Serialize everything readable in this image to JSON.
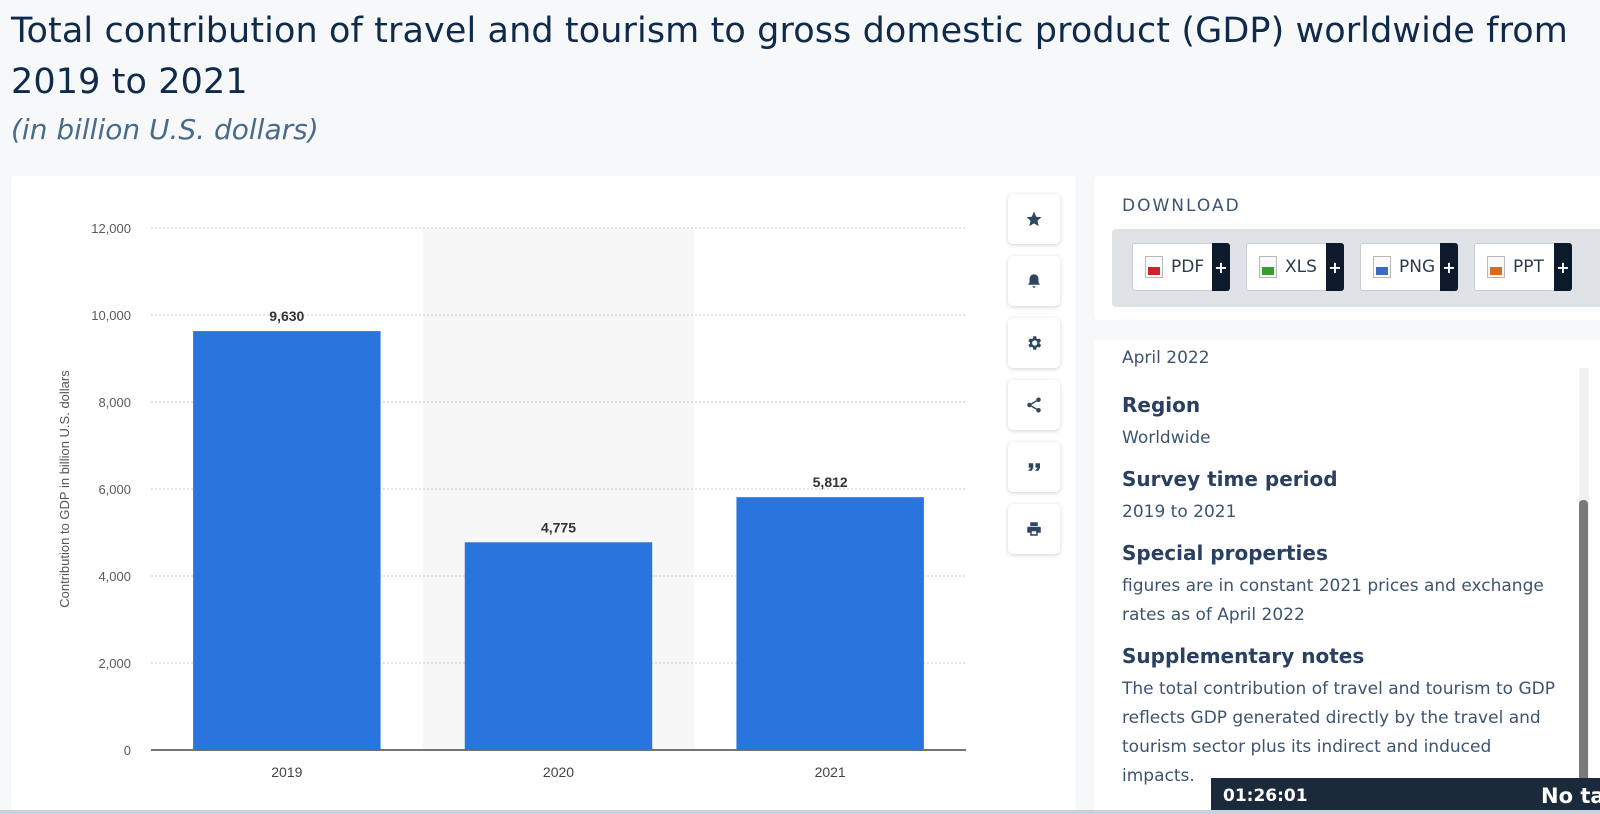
{
  "header": {
    "title": "Total contribution of travel and tourism to gross domestic product (GDP) worldwide from 2019 to 2021",
    "subtitle": "(in billion U.S. dollars)"
  },
  "chart_data": {
    "type": "bar",
    "categories": [
      "2019",
      "2020",
      "2021"
    ],
    "values": [
      9630,
      4775,
      5812
    ],
    "value_labels": [
      "9,630",
      "4,775",
      "5,812"
    ],
    "ylabel": "Contribution to GDP in billion U.S. dollars",
    "yticks": [
      "0",
      "2,000",
      "4,000",
      "6,000",
      "8,000",
      "10,000",
      "12,000"
    ],
    "ylim": [
      0,
      12000
    ],
    "grid": true,
    "highlighted_category": "2020",
    "bar_color": "#2a75dd"
  },
  "toolbar": [
    "star-icon",
    "bell-icon",
    "gear-icon",
    "share-icon",
    "quote-icon",
    "print-icon"
  ],
  "download": {
    "heading": "DOWNLOAD",
    "buttons": [
      {
        "label": "PDF",
        "plus": "+",
        "color": "#d0222b"
      },
      {
        "label": "XLS",
        "plus": "+",
        "color": "#3a9b2f"
      },
      {
        "label": "PNG",
        "plus": "+",
        "color": "#3a6bc4"
      },
      {
        "label": "PPT",
        "plus": "+",
        "color": "#e06a1a"
      }
    ]
  },
  "info": {
    "cut_text": "April 2022",
    "region_heading": "Region",
    "region_value": "Worldwide",
    "period_heading": "Survey time period",
    "period_value": "2019 to 2021",
    "special_heading": "Special properties",
    "special_value": "figures are in constant 2021 prices and exchange rates as of April 2022",
    "notes_heading": "Supplementary notes",
    "notes_value": "The total contribution of travel and tourism to GDP reflects GDP generated directly by the travel and tourism sector plus its indirect and induced impacts."
  },
  "timer": {
    "time": "01:26:01",
    "message": "No ta"
  }
}
